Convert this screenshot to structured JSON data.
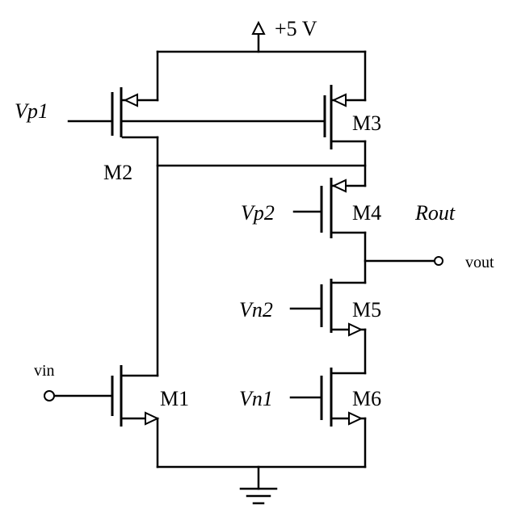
{
  "diagram": {
    "supply_label": "+5 V",
    "transistors": [
      {
        "id": "M1",
        "label": "M1"
      },
      {
        "id": "M2",
        "label": "M2"
      },
      {
        "id": "M3",
        "label": "M3"
      },
      {
        "id": "M4",
        "label": "M4"
      },
      {
        "id": "M5",
        "label": "M5"
      },
      {
        "id": "M6",
        "label": "M6"
      }
    ],
    "bias_labels": {
      "vp1": "Vp1",
      "vp2": "Vp2",
      "vn2": "Vn2",
      "vn1": "Vn1"
    },
    "input_label": "vin",
    "output_label": "vout",
    "rout_label": "Rout"
  }
}
